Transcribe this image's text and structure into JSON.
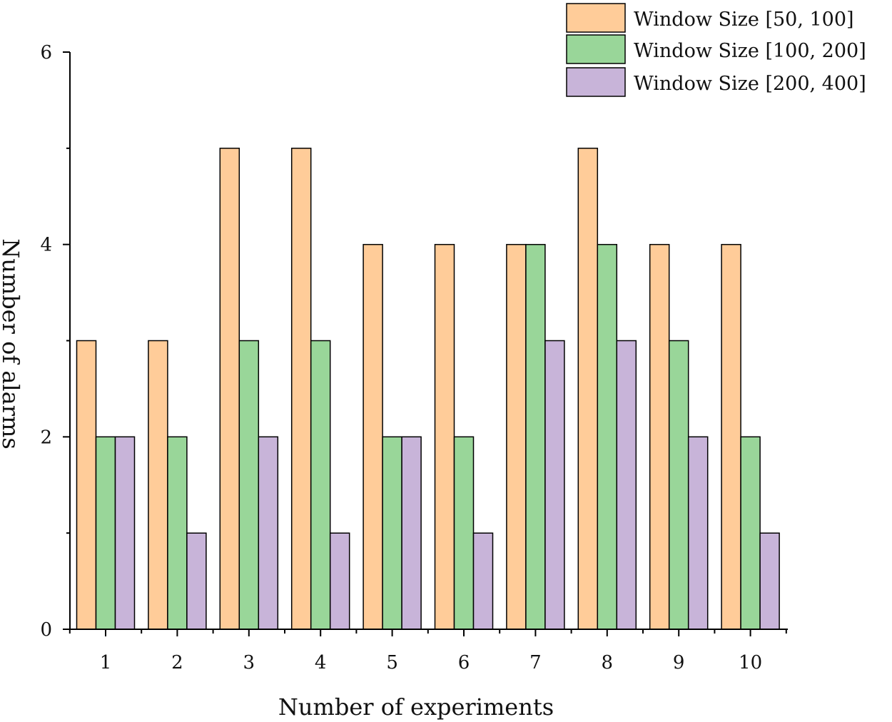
{
  "chart_data": {
    "type": "bar",
    "title": "",
    "xlabel": "Number of experiments",
    "ylabel": "Number of alarms",
    "categories": [
      "1",
      "2",
      "3",
      "4",
      "5",
      "6",
      "7",
      "8",
      "9",
      "10"
    ],
    "ylim": [
      0,
      6
    ],
    "yticks": [
      0,
      2,
      4,
      6
    ],
    "grid": false,
    "legend_position": "top-right",
    "series": [
      {
        "name": "Window Size [50, 100]",
        "color": "#ffcc99",
        "values": [
          3,
          3,
          5,
          5,
          4,
          4,
          4,
          5,
          4,
          4
        ]
      },
      {
        "name": "Window Size [100, 200]",
        "color": "#99d699",
        "values": [
          2,
          2,
          3,
          3,
          2,
          2,
          4,
          4,
          3,
          2
        ]
      },
      {
        "name": "Window Size [200, 400]",
        "color": "#c8b4d9",
        "values": [
          2,
          1,
          2,
          1,
          2,
          1,
          3,
          3,
          2,
          1
        ]
      }
    ]
  }
}
